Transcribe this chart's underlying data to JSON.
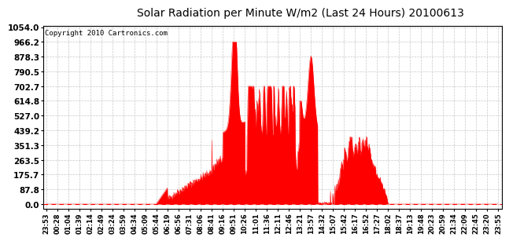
{
  "title": "Solar Radiation per Minute W/m2 (Last 24 Hours) 20100613",
  "copyright": "Copyright 2010 Cartronics.com",
  "bg_color": "#ffffff",
  "plot_bg_color": "#ffffff",
  "line_color": "#ff0000",
  "fill_color": "#ff0000",
  "grid_color": "#c8c8c8",
  "ymin": 0.0,
  "ymax": 1054.0,
  "yticks": [
    0.0,
    87.8,
    175.7,
    263.5,
    351.3,
    439.2,
    527.0,
    614.8,
    702.7,
    790.5,
    878.3,
    966.2,
    1054.0
  ],
  "x_labels": [
    "23:53",
    "00:28",
    "01:04",
    "01:39",
    "02:14",
    "02:49",
    "03:24",
    "03:59",
    "04:34",
    "05:09",
    "05:44",
    "06:19",
    "06:56",
    "07:31",
    "08:06",
    "08:41",
    "09:16",
    "09:51",
    "10:26",
    "11:01",
    "11:36",
    "12:11",
    "12:46",
    "13:21",
    "13:57",
    "14:32",
    "15:07",
    "15:42",
    "16:17",
    "16:52",
    "17:27",
    "18:02",
    "18:37",
    "19:13",
    "19:48",
    "20:23",
    "20:59",
    "21:34",
    "22:09",
    "22:45",
    "23:20",
    "23:55"
  ]
}
